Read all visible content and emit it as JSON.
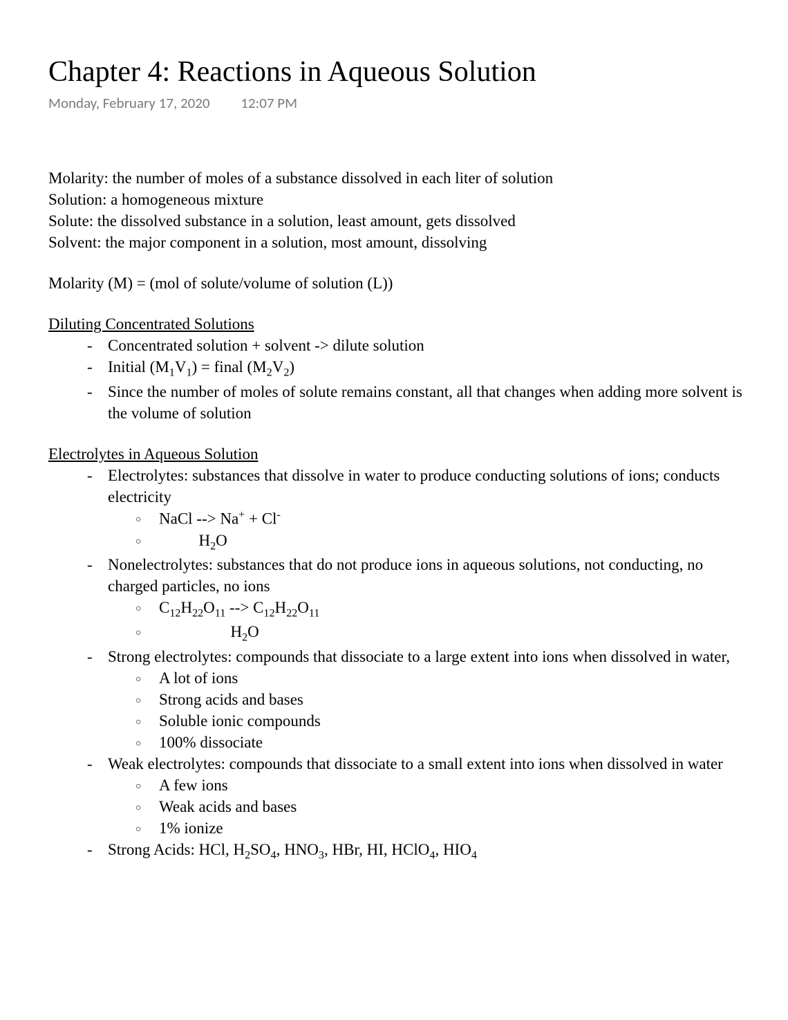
{
  "title": "Chapter 4: Reactions in Aqueous Solution",
  "meta": {
    "date": "Monday, February 17, 2020",
    "time": "12:07 PM"
  },
  "definitions": {
    "molarity": "Molarity: the number of moles of a substance dissolved in each liter of solution",
    "solution": "Solution: a homogeneous mixture",
    "solute": "Solute: the dissolved substance in a solution, least amount, gets dissolved",
    "solvent": "Solvent: the major component in a solution, most amount, dissolving"
  },
  "formula": "Molarity (M) = (mol of solute/volume of solution (L))",
  "sections": {
    "diluting": {
      "heading": "Diluting Concentrated Solutions",
      "items": {
        "a": "Concentrated solution + solvent -> dilute solution",
        "b_pre": "Initial (M",
        "b_mid1": "V",
        "b_mid2": ") = final (M",
        "b_mid3": "V",
        "b_post": ")",
        "c": "Since the number of moles of solute remains constant, all that changes when adding more solvent is the volume of solution"
      }
    },
    "electrolytes": {
      "heading": "Electrolytes in Aqueous Solution",
      "item1": {
        "text": "Electrolytes: substances that dissolve in water to produce conducting solutions of ions; conducts electricity",
        "sub_a_pre": "NaCl --> Na",
        "sub_a_mid": " + Cl",
        "sub_b_pre": "          H",
        "sub_b_post": "O"
      },
      "item2": {
        "text": "Nonelectrolytes: substances that do not produce ions in aqueous solutions, not conducting, no charged particles, no ions",
        "sub_a_c": "C",
        "sub_a_h": "H",
        "sub_a_o": "O",
        "sub_a_arrow": " --> C",
        "sub_b_pre": "                  H",
        "sub_b_post": "O"
      },
      "item3": {
        "text": "Strong electrolytes: compounds that dissociate to a large extent into ions when dissolved in water,",
        "subs": {
          "a": "A lot of ions",
          "b": "Strong acids and bases",
          "c": "Soluble ionic compounds",
          "d": "100% dissociate"
        }
      },
      "item4": {
        "text": "Weak electrolytes: compounds that dissociate to a small extent into ions when dissolved in water",
        "subs": {
          "a": "A few ions",
          "b": "Weak acids and bases",
          "c": "1% ionize"
        }
      },
      "item5_pre": "Strong Acids: HCl, H",
      "item5_a": "SO",
      "item5_b": ", HNO",
      "item5_c": ", HBr, HI, HClO",
      "item5_d": ", HIO"
    }
  },
  "subscripts": {
    "s1": "1",
    "s2": "2",
    "s3": "3",
    "s4": "4",
    "s11": "11",
    "s12": "12",
    "s22": "22"
  },
  "superscripts": {
    "plus": "+",
    "minus": "-"
  }
}
